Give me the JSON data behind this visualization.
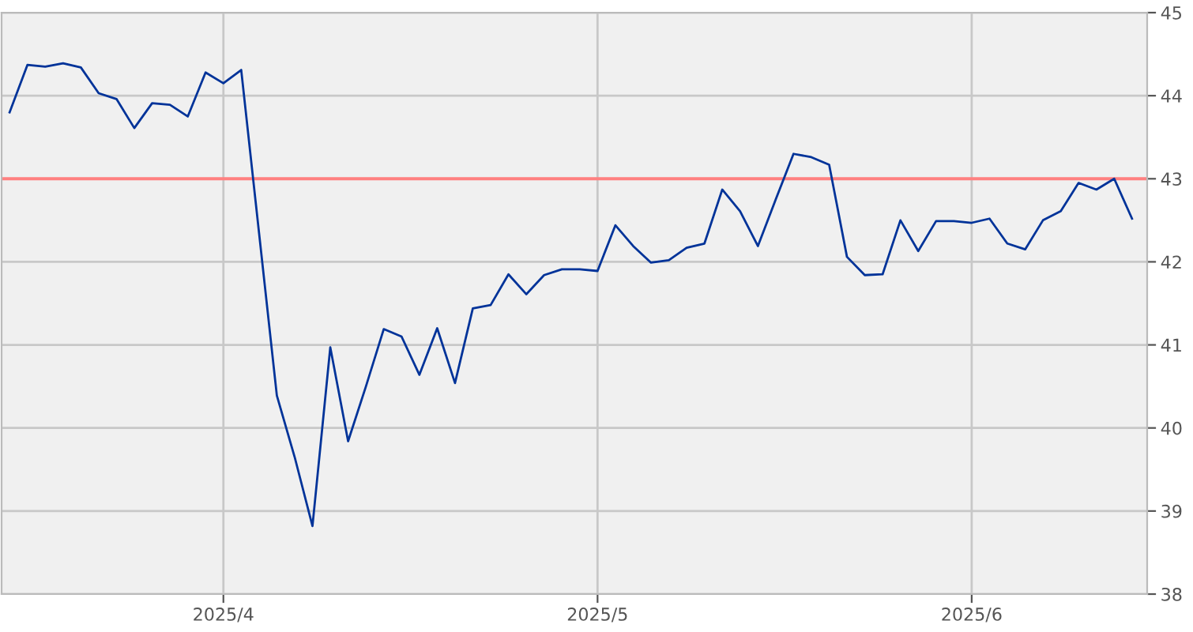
{
  "chart_data": {
    "type": "line",
    "categories": [
      null,
      null,
      null,
      null,
      null,
      null,
      null,
      null,
      null,
      null,
      null,
      null,
      "2025/4",
      null,
      null,
      null,
      null,
      null,
      null,
      null,
      null,
      null,
      null,
      null,
      null,
      null,
      null,
      null,
      null,
      null,
      null,
      null,
      null,
      "2025/5",
      null,
      null,
      null,
      null,
      null,
      null,
      null,
      null,
      null,
      null,
      null,
      null,
      null,
      null,
      null,
      null,
      null,
      null,
      null,
      null,
      "2025/6",
      null,
      null,
      null,
      null,
      null,
      null,
      null,
      null,
      null
    ],
    "series": [
      {
        "color": "#003399",
        "values": [
          43.8,
          44.37,
          44.35,
          44.39,
          44.34,
          44.03,
          43.96,
          43.61,
          43.91,
          43.89,
          43.75,
          44.28,
          44.15,
          44.31,
          42.35,
          40.39,
          39.65,
          38.82,
          40.97,
          39.84,
          40.5,
          41.19,
          41.1,
          40.64,
          41.2,
          40.54,
          41.44,
          41.48,
          41.85,
          41.61,
          41.84,
          41.91,
          41.91,
          41.89,
          42.44,
          42.19,
          41.99,
          42.02,
          42.17,
          42.22,
          42.87,
          42.61,
          42.19,
          42.75,
          43.3,
          43.26,
          43.17,
          42.06,
          41.84,
          41.85,
          42.5,
          42.13,
          42.49,
          42.49,
          42.47,
          42.52,
          42.22,
          42.15,
          42.5,
          42.61,
          42.95,
          42.87,
          43.0,
          42.52
        ]
      }
    ],
    "ylim": [
      38,
      45
    ],
    "yticks": [
      38,
      39,
      40,
      41,
      42,
      43,
      44,
      45
    ],
    "ref_lines": [
      {
        "axis": "y",
        "value": 43,
        "color": "#ff8080"
      }
    ],
    "grid": true,
    "marker": "none",
    "line_style": "solid"
  }
}
